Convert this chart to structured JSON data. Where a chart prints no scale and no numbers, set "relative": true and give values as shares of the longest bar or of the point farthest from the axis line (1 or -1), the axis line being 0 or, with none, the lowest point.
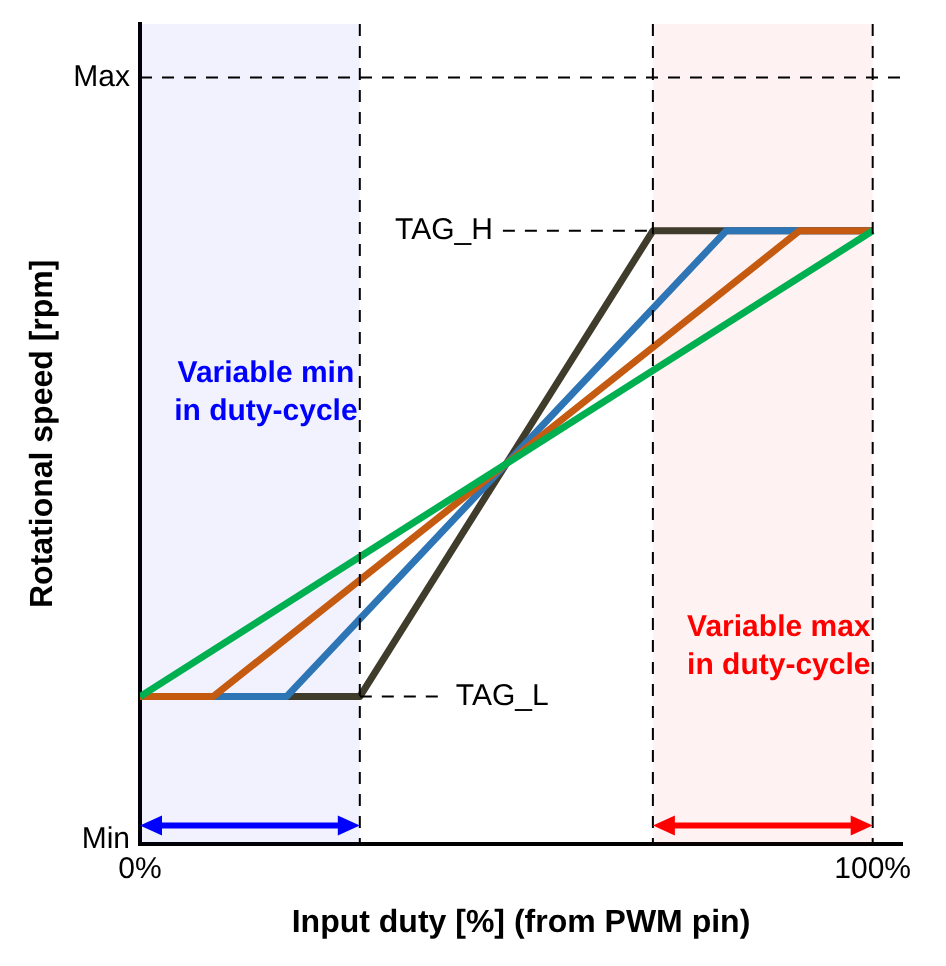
{
  "chart_data": {
    "type": "line",
    "xlabel": "Input duty [%] (from PWM pin)",
    "ylabel": "Rotational speed [rpm]",
    "relative": true,
    "xlim": [
      0,
      104
    ],
    "xticks": [
      {
        "value": 0,
        "label": "0%"
      },
      {
        "value": 100,
        "label": "100%"
      }
    ],
    "grid": false,
    "legend": false,
    "marker": "none",
    "line_style": "solid",
    "series": [
      {
        "color": "#00b050",
        "x": [
          0,
          100
        ],
        "values": [
          0.24,
          1
        ]
      },
      {
        "color": "#c55a11",
        "x": [
          0,
          10,
          90,
          100
        ],
        "values": [
          0.24,
          0.24,
          1,
          1
        ]
      },
      {
        "color": "#2e75b6",
        "x": [
          0,
          20,
          80,
          100
        ],
        "values": [
          0.24,
          0.24,
          1,
          1
        ]
      },
      {
        "color": "#403c2c",
        "x": [
          0,
          30,
          70,
          100
        ],
        "values": [
          0.24,
          0.24,
          1,
          1
        ]
      }
    ],
    "ref_lines": [
      {
        "axis": "y",
        "value": 1.25,
        "label": "Max",
        "line_style": "dashed"
      },
      {
        "axis": "x",
        "value": 100,
        "line_style": "dashed"
      },
      {
        "axis": "x",
        "value": 30,
        "line_style": "dashed"
      },
      {
        "axis": "x",
        "value": 70,
        "line_style": "dashed"
      },
      {
        "axis": "y",
        "value": 1,
        "label": "TAG_H",
        "line_style": "dashed"
      },
      {
        "axis": "y",
        "value": 0.24,
        "label": "TAG_L",
        "line_style": "dashed"
      }
    ],
    "annotations": [
      "Min"
    ],
    "bands": [
      {
        "axis": "x",
        "from": 0,
        "to": 30,
        "label": "Variable min in duty-cycle",
        "color": "#0000ff"
      },
      {
        "axis": "x",
        "from": 70,
        "to": 100,
        "label": "Variable max in duty-cycle",
        "color": "#ff0000"
      }
    ]
  }
}
